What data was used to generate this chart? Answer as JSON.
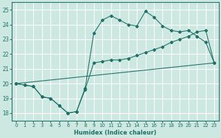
{
  "title": "",
  "xlabel": "Humidex (Indice chaleur)",
  "bg_color": "#cce8e0",
  "grid_color": "#ffffff",
  "line_color": "#1e7068",
  "xlim": [
    -0.5,
    23.5
  ],
  "ylim": [
    17.5,
    25.5
  ],
  "xticks": [
    0,
    1,
    2,
    3,
    4,
    5,
    6,
    7,
    8,
    9,
    10,
    11,
    12,
    13,
    14,
    15,
    16,
    17,
    18,
    19,
    20,
    21,
    22,
    23
  ],
  "yticks": [
    18,
    19,
    20,
    21,
    22,
    23,
    24,
    25
  ],
  "series1_x": [
    0,
    1,
    2,
    3,
    4,
    5,
    6,
    7,
    8,
    9,
    10,
    11,
    12,
    13,
    14,
    15,
    16,
    17,
    18,
    19,
    20,
    21,
    22,
    23
  ],
  "series1_y": [
    20.0,
    19.9,
    19.8,
    19.1,
    19.0,
    18.5,
    18.0,
    18.1,
    19.6,
    21.4,
    21.5,
    21.6,
    21.6,
    21.7,
    21.9,
    22.1,
    22.3,
    22.5,
    22.8,
    23.0,
    23.2,
    23.5,
    23.6,
    21.4
  ],
  "series2_x": [
    0,
    1,
    2,
    3,
    4,
    5,
    6,
    7,
    8,
    9,
    10,
    11,
    12,
    13,
    14,
    15,
    16,
    17,
    18,
    19,
    20,
    21,
    22,
    23
  ],
  "series2_y": [
    20.0,
    19.9,
    19.8,
    19.1,
    19.0,
    18.5,
    18.0,
    18.1,
    19.7,
    23.4,
    24.3,
    24.6,
    24.3,
    24.0,
    23.9,
    24.9,
    24.5,
    23.9,
    23.6,
    23.5,
    23.6,
    23.2,
    22.8,
    21.4
  ],
  "series3_x": [
    0,
    23
  ],
  "series3_y": [
    20.0,
    21.4
  ],
  "xlabel_fontsize": 6,
  "tick_fontsize": 5
}
